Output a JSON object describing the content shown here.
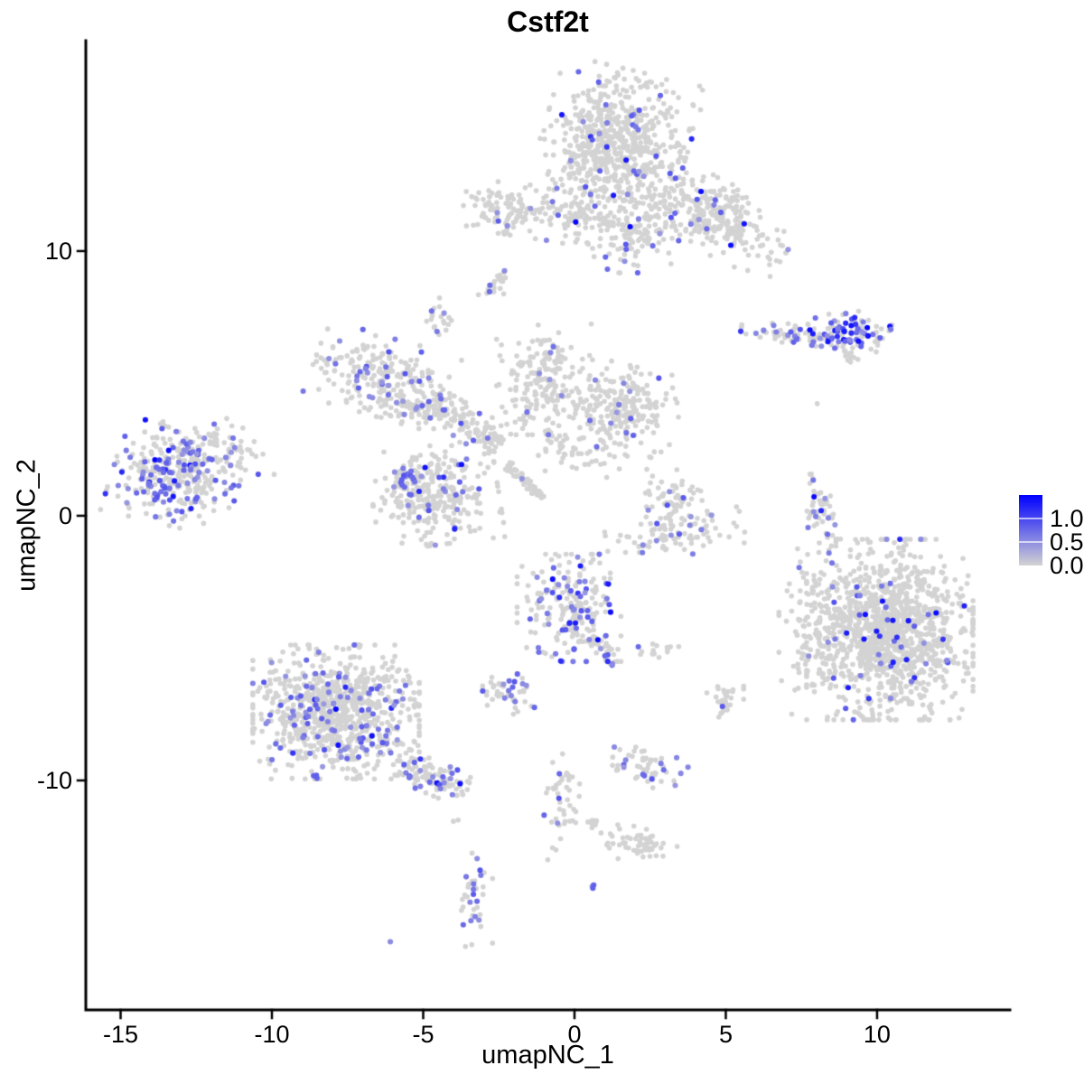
{
  "chart_data": {
    "type": "scatter",
    "title": "Cstf2t",
    "xlabel": "umapNC_1",
    "ylabel": "umapNC_2",
    "xlim": [
      -16.15,
      14.39
    ],
    "ylim": [
      -18.67,
      17.95
    ],
    "grid": false,
    "x_axis": {
      "ticks": [
        {
          "value": -15,
          "label": "-15"
        },
        {
          "value": -10,
          "label": "-10"
        },
        {
          "value": -5,
          "label": "-5"
        },
        {
          "value": 0,
          "label": "0"
        },
        {
          "value": 5,
          "label": "5"
        },
        {
          "value": 10,
          "label": "10"
        }
      ]
    },
    "y_axis": {
      "ticks": [
        {
          "value": 10,
          "label": "10"
        },
        {
          "value": 0,
          "label": "0"
        },
        {
          "value": -10,
          "label": "-10"
        }
      ]
    },
    "legend": {
      "position": "right",
      "vmax": 1.5,
      "ticks": [
        {
          "value": 1.0,
          "label": "1.0"
        },
        {
          "value": 0.5,
          "label": "0.5"
        },
        {
          "value": 0.0,
          "label": "0.0"
        }
      ]
    },
    "colors": {
      "low": "#D3D3D3",
      "high": "#0000FF",
      "axis": "#000000"
    },
    "point_radius_px": 2.8,
    "seed": 42,
    "clusters": [
      {
        "x": 1.31,
        "y": 14.03,
        "sx": 1.1,
        "sy": 1.3,
        "rot": -15,
        "n": 680,
        "frac": 0.045,
        "dark": 0.1,
        "shape": "gauss"
      },
      {
        "x": 4.6,
        "y": 11.3,
        "sx": 1.25,
        "sy": 0.62,
        "rot": -30,
        "n": 300,
        "frac": 0.05,
        "dark": 0.15,
        "shape": "gauss"
      },
      {
        "x": 1.91,
        "y": 10.61,
        "sx": 0.85,
        "sy": 0.65,
        "rot": 0,
        "n": 130,
        "frac": 0.06,
        "dark": 0.1,
        "shape": "gauss"
      },
      {
        "x": -1.91,
        "y": 11.57,
        "sx": 0.8,
        "sy": 0.45,
        "rot": -10,
        "n": 130,
        "frac": 0.03,
        "dark": 0.0,
        "shape": "gauss"
      },
      {
        "x": 0.27,
        "y": 11.23,
        "sx": 0.38,
        "sy": 0.24,
        "rot": 0,
        "n": 30,
        "frac": 0.05,
        "dark": 0.0,
        "shape": "gauss"
      },
      {
        "x": -2.72,
        "y": 8.81,
        "sx": 0.3,
        "sy": 0.26,
        "rot": 45,
        "n": 22,
        "frac": 0.09,
        "dark": 0.0,
        "shape": "gauss"
      },
      {
        "x": -4.45,
        "y": 7.44,
        "sx": 0.24,
        "sy": 0.36,
        "rot": 0,
        "n": 20,
        "frac": 0.12,
        "dark": 0.0,
        "shape": "gauss"
      },
      {
        "x": 7.43,
        "y": 6.83,
        "sx": 0.88,
        "sy": 0.2,
        "rot": -8,
        "n": 70,
        "frac": 0.3,
        "dark": 0.15,
        "shape": "gauss"
      },
      {
        "x": 9.28,
        "y": 6.96,
        "sx": 0.6,
        "sy": 0.35,
        "rot": 0,
        "n": 90,
        "frac": 0.42,
        "dark": 0.35,
        "shape": "gauss"
      },
      {
        "x": 9.07,
        "y": 6.08,
        "sx": 0.45,
        "sy": 0.1,
        "rot": -42,
        "n": 14,
        "frac": 0.0,
        "dark": 0.0,
        "shape": "line"
      },
      {
        "x": -6.36,
        "y": 5.26,
        "sx": 1.05,
        "sy": 0.68,
        "rot": -18,
        "n": 230,
        "frac": 0.13,
        "dark": 0.05,
        "shape": "gauss"
      },
      {
        "x": -5.4,
        "y": 4.13,
        "sx": 0.45,
        "sy": 0.35,
        "rot": 0,
        "n": 45,
        "frac": 0.1,
        "dark": 0.0,
        "shape": "gauss"
      },
      {
        "x": -0.99,
        "y": 5.15,
        "sx": 0.72,
        "sy": 0.95,
        "rot": 0,
        "n": 190,
        "frac": 0.035,
        "dark": 0.05,
        "shape": "gauss"
      },
      {
        "x": 1.52,
        "y": 4.06,
        "sx": 0.88,
        "sy": 0.75,
        "rot": -15,
        "n": 230,
        "frac": 0.045,
        "dark": 0.05,
        "shape": "gauss"
      },
      {
        "x": -3.61,
        "y": 3.45,
        "sx": 1.4,
        "sy": 0.32,
        "rot": -33,
        "n": 130,
        "frac": 0.05,
        "dark": 0.0,
        "shape": "line"
      },
      {
        "x": -1.61,
        "y": 1.3,
        "sx": 0.9,
        "sy": 0.09,
        "rot": -46,
        "n": 55,
        "frac": 0.02,
        "dark": 0.0,
        "shape": "line"
      },
      {
        "x": 0.12,
        "y": 2.42,
        "sx": 1.05,
        "sy": 0.42,
        "rot": -10,
        "n": 55,
        "frac": 0.03,
        "dark": 0.0,
        "shape": "gauss"
      },
      {
        "x": -13.16,
        "y": 1.5,
        "sx": 0.95,
        "sy": 0.85,
        "rot": -15,
        "n": 340,
        "frac": 0.32,
        "dark": 0.12,
        "shape": "gauss"
      },
      {
        "x": -11.28,
        "y": 2.53,
        "sx": 0.75,
        "sy": 0.42,
        "rot": -28,
        "n": 45,
        "frac": 0.08,
        "dark": 0.0,
        "shape": "gauss"
      },
      {
        "x": -4.6,
        "y": 0.78,
        "sx": 0.95,
        "sy": 0.85,
        "rot": 8,
        "n": 300,
        "frac": 0.1,
        "dark": 0.05,
        "shape": "gauss"
      },
      {
        "x": -5.49,
        "y": 1.5,
        "sx": 0.24,
        "sy": 0.19,
        "rot": 0,
        "n": 16,
        "frac": 0.75,
        "dark": 0.1,
        "shape": "gauss"
      },
      {
        "x": -4.96,
        "y": 1.88,
        "sx": 0.03,
        "sy": 0.03,
        "rot": 0,
        "n": 1,
        "frac": 1.0,
        "dark": 1.0,
        "shape": "point"
      },
      {
        "x": 3.16,
        "y": 0.78,
        "sx": 0.48,
        "sy": 0.48,
        "rot": 0,
        "n": 60,
        "frac": 0.06,
        "dark": 0.0,
        "shape": "gauss"
      },
      {
        "x": 3.34,
        "y": -0.68,
        "sx": 1.05,
        "sy": 0.38,
        "rot": 8,
        "n": 95,
        "frac": 0.07,
        "dark": 0.0,
        "shape": "gauss"
      },
      {
        "x": 8.09,
        "y": 0.03,
        "sx": 0.21,
        "sy": 0.9,
        "rot": 8,
        "n": 55,
        "frac": 0.12,
        "dark": 0.1,
        "shape": "gauss"
      },
      {
        "x": 10.42,
        "y": -4.3,
        "sx": 1.25,
        "sy": 1.55,
        "rot": 0,
        "n": 1150,
        "frac": 0.045,
        "dark": 0.3,
        "shape": "gauss"
      },
      {
        "x": 8.12,
        "y": -4.4,
        "sx": 0.62,
        "sy": 1.6,
        "rot": 0,
        "n": 150,
        "frac": 0.05,
        "dark": 0.1,
        "shape": "gauss"
      },
      {
        "x": -0.18,
        "y": -3.48,
        "sx": 0.78,
        "sy": 0.92,
        "rot": 0,
        "n": 210,
        "frac": 0.22,
        "dark": 0.12,
        "shape": "gauss"
      },
      {
        "x": 0.96,
        "y": -5.15,
        "sx": 0.68,
        "sy": 0.13,
        "rot": -62,
        "n": 35,
        "frac": 0.28,
        "dark": 0.1,
        "shape": "line"
      },
      {
        "x": 2.72,
        "y": -4.98,
        "sx": 0.33,
        "sy": 0.17,
        "rot": 0,
        "n": 15,
        "frac": 0.12,
        "dark": 0.0,
        "shape": "gauss"
      },
      {
        "x": -2.69,
        "y": -6.66,
        "sx": 0.26,
        "sy": 0.3,
        "rot": 0,
        "n": 22,
        "frac": 0.1,
        "dark": 0.0,
        "shape": "gauss"
      },
      {
        "x": -1.94,
        "y": -6.86,
        "sx": 0.28,
        "sy": 0.4,
        "rot": 0,
        "n": 28,
        "frac": 0.3,
        "dark": 0.0,
        "shape": "gauss"
      },
      {
        "x": -7.88,
        "y": -7.41,
        "sx": 1.25,
        "sy": 1.15,
        "rot": 0,
        "n": 840,
        "frac": 0.13,
        "dark": 0.05,
        "shape": "gauss"
      },
      {
        "x": -4.75,
        "y": -9.86,
        "sx": 1.35,
        "sy": 0.28,
        "rot": -26,
        "n": 110,
        "frac": 0.22,
        "dark": 0.1,
        "shape": "line"
      },
      {
        "x": 4.93,
        "y": -7.1,
        "sx": 0.3,
        "sy": 0.44,
        "rot": 0,
        "n": 30,
        "frac": 0.13,
        "dark": 0.0,
        "shape": "gauss"
      },
      {
        "x": 2.3,
        "y": -9.49,
        "sx": 0.65,
        "sy": 0.33,
        "rot": -10,
        "n": 55,
        "frac": 0.12,
        "dark": 0.0,
        "shape": "gauss"
      },
      {
        "x": -0.39,
        "y": -10.82,
        "sx": 0.33,
        "sy": 1.0,
        "rot": 0,
        "n": 45,
        "frac": 0.07,
        "dark": 0.0,
        "shape": "gauss"
      },
      {
        "x": 0.72,
        "y": -11.67,
        "sx": 0.38,
        "sy": 0.09,
        "rot": -40,
        "n": 12,
        "frac": 0.0,
        "dark": 0.0,
        "shape": "line"
      },
      {
        "x": 2.15,
        "y": -12.46,
        "sx": 0.55,
        "sy": 0.3,
        "rot": -15,
        "n": 55,
        "frac": 0.0,
        "dark": 0.0,
        "shape": "gauss"
      },
      {
        "x": -3.28,
        "y": -14.47,
        "sx": 0.26,
        "sy": 0.82,
        "rot": 0,
        "n": 36,
        "frac": 0.35,
        "dark": 0.1,
        "shape": "gauss"
      },
      {
        "x": 0.63,
        "y": -14.03,
        "sx": 0.09,
        "sy": 0.07,
        "rot": 0,
        "n": 3,
        "frac": 1.0,
        "dark": 0.5,
        "shape": "gauss"
      },
      {
        "x": -6.09,
        "y": -16.11,
        "sx": 0.02,
        "sy": 0.02,
        "rot": 0,
        "n": 1,
        "frac": 1.0,
        "dark": 0.0,
        "shape": "point"
      },
      {
        "x": 8.06,
        "y": 4.27,
        "sx": 0.02,
        "sy": 0.02,
        "rot": 0,
        "n": 1,
        "frac": 0.0,
        "dark": 0.0,
        "shape": "point"
      },
      {
        "x": 2.45,
        "y": 2.22,
        "sx": 0.05,
        "sy": 0.04,
        "rot": 0,
        "n": 2,
        "frac": 0.0,
        "dark": 0.0,
        "shape": "point"
      },
      {
        "x": -4.0,
        "y": -11.5,
        "sx": 0.07,
        "sy": 0.05,
        "rot": 0,
        "n": 2,
        "frac": 0.0,
        "dark": 0.0,
        "shape": "point"
      }
    ]
  }
}
